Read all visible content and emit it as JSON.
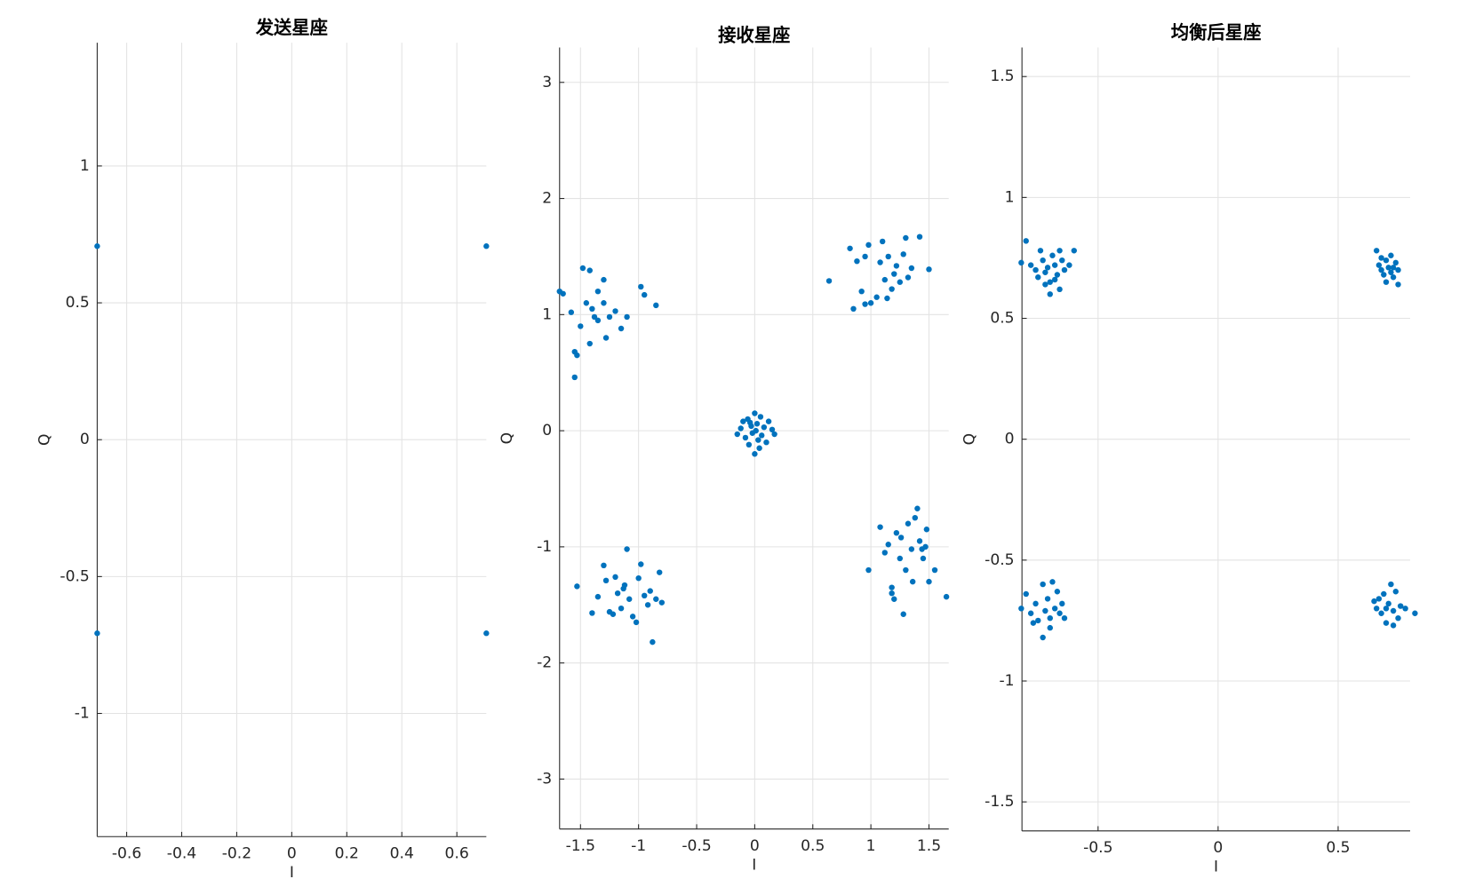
{
  "chart_data": [
    {
      "type": "scatter",
      "title": "发送星座",
      "xlabel": "I",
      "ylabel": "Q",
      "color": "#0072BD",
      "grid": true,
      "xlim": [
        -0.7071,
        0.7071
      ],
      "ylim": [
        -1.45,
        1.45
      ],
      "xticks": [
        -0.6,
        -0.4,
        -0.2,
        0,
        0.2,
        0.4,
        0.6
      ],
      "yticks": [
        -1,
        -0.5,
        0,
        0.5,
        1
      ],
      "x": [
        -0.7071,
        0.7071,
        -0.7071,
        0.7071
      ],
      "y": [
        0.7071,
        0.7071,
        -0.7071,
        -0.7071
      ]
    },
    {
      "type": "scatter",
      "title": "接收星座",
      "xlabel": "I",
      "ylabel": "Q",
      "color": "#0072BD",
      "grid": true,
      "xlim": [
        -1.68,
        1.67
      ],
      "ylim": [
        -3.43,
        3.3
      ],
      "xticks": [
        -1.5,
        -1,
        -0.5,
        0,
        0.5,
        1,
        1.5
      ],
      "yticks": [
        -3,
        -2,
        -1,
        0,
        1,
        2,
        3
      ],
      "x": [
        -1.68,
        -1.65,
        -1.55,
        -1.53,
        -1.55,
        -1.48,
        -1.42,
        -1.45,
        -1.4,
        -1.35,
        -1.3,
        -1.28,
        -1.25,
        -1.2,
        -1.15,
        -1.1,
        -0.98,
        -0.95,
        -0.85,
        -1.5,
        -1.42,
        -1.35,
        -1.3,
        -1.58,
        -1.38,
        0.64,
        0.82,
        0.88,
        0.92,
        0.95,
        0.98,
        1.0,
        1.05,
        1.1,
        1.12,
        1.15,
        1.2,
        1.22,
        1.25,
        1.3,
        1.35,
        1.42,
        1.5,
        0.85,
        1.18,
        1.28,
        1.08,
        0.95,
        1.32,
        1.14,
        -1.53,
        -1.4,
        -1.35,
        -1.3,
        -1.28,
        -1.25,
        -1.2,
        -1.18,
        -1.15,
        -1.12,
        -1.1,
        -1.08,
        -1.05,
        -1.0,
        -0.98,
        -0.95,
        -0.92,
        -0.88,
        -0.85,
        -0.82,
        -0.8,
        -1.22,
        -1.02,
        -1.13,
        -0.9,
        0.98,
        1.08,
        1.12,
        1.15,
        1.18,
        1.2,
        1.22,
        1.25,
        1.28,
        1.3,
        1.32,
        1.35,
        1.38,
        1.4,
        1.42,
        1.45,
        1.48,
        1.5,
        1.55,
        1.65,
        1.18,
        1.44,
        1.26,
        1.36,
        1.47,
        -0.15,
        -0.12,
        -0.1,
        -0.08,
        -0.06,
        -0.05,
        -0.03,
        -0.02,
        0.0,
        0.0,
        0.01,
        0.02,
        0.03,
        0.05,
        0.06,
        0.08,
        0.1,
        0.12,
        0.15,
        0.17,
        0.04,
        -0.04
      ],
      "y": [
        1.2,
        1.18,
        0.68,
        0.65,
        0.46,
        1.4,
        1.38,
        1.1,
        1.05,
        1.2,
        1.1,
        0.8,
        0.98,
        1.03,
        0.88,
        0.98,
        1.24,
        1.17,
        1.08,
        0.9,
        0.75,
        0.95,
        1.3,
        1.02,
        0.98,
        1.29,
        1.57,
        1.46,
        1.2,
        1.5,
        1.6,
        1.1,
        1.15,
        1.63,
        1.3,
        1.5,
        1.35,
        1.42,
        1.28,
        1.66,
        1.4,
        1.67,
        1.39,
        1.05,
        1.22,
        1.52,
        1.45,
        1.09,
        1.32,
        1.14,
        -1.34,
        -1.57,
        -1.43,
        -1.16,
        -1.29,
        -1.56,
        -1.26,
        -1.4,
        -1.53,
        -1.33,
        -1.02,
        -1.45,
        -1.6,
        -1.27,
        -1.15,
        -1.42,
        -1.5,
        -1.82,
        -1.45,
        -1.22,
        -1.48,
        -1.58,
        -1.65,
        -1.36,
        -1.38,
        -1.2,
        -0.83,
        -1.05,
        -0.98,
        -1.35,
        -1.45,
        -0.88,
        -1.1,
        -1.58,
        -1.2,
        -0.8,
        -1.02,
        -0.75,
        -0.67,
        -0.95,
        -1.1,
        -0.85,
        -1.3,
        -1.2,
        -1.43,
        -1.4,
        -1.02,
        -0.92,
        -1.3,
        -1.0,
        -0.03,
        0.02,
        0.08,
        -0.06,
        0.1,
        -0.12,
        0.04,
        -0.02,
        0.15,
        -0.2,
        0.0,
        0.06,
        -0.08,
        0.12,
        -0.04,
        0.03,
        -0.1,
        0.08,
        0.01,
        -0.03,
        -0.15,
        0.07
      ]
    },
    {
      "type": "scatter",
      "title": "均衡后星座",
      "xlabel": "I",
      "ylabel": "Q",
      "color": "#0072BD",
      "grid": true,
      "xlim": [
        -0.817,
        0.8
      ],
      "ylim": [
        -1.62,
        1.62
      ],
      "xticks": [
        -0.5,
        0,
        0.5
      ],
      "yticks": [
        -1.5,
        -1,
        -0.5,
        0,
        0.5,
        1,
        1.5
      ],
      "x": [
        -0.82,
        -0.8,
        -0.78,
        -0.76,
        -0.75,
        -0.73,
        -0.72,
        -0.71,
        -0.7,
        -0.69,
        -0.68,
        -0.67,
        -0.66,
        -0.65,
        -0.64,
        -0.62,
        -0.6,
        -0.74,
        -0.7,
        -0.68,
        -0.72,
        -0.66,
        0.66,
        0.67,
        0.68,
        0.69,
        0.7,
        0.7,
        0.71,
        0.72,
        0.72,
        0.73,
        0.74,
        0.75,
        0.75,
        0.68,
        0.73,
        -0.82,
        -0.8,
        -0.78,
        -0.76,
        -0.75,
        -0.73,
        -0.72,
        -0.71,
        -0.7,
        -0.69,
        -0.68,
        -0.67,
        -0.66,
        -0.65,
        -0.64,
        -0.73,
        -0.7,
        -0.77,
        0.65,
        0.66,
        0.68,
        0.69,
        0.7,
        0.71,
        0.72,
        0.73,
        0.74,
        0.75,
        0.76,
        0.78,
        0.82,
        0.7,
        0.73,
        0.67
      ],
      "y": [
        0.73,
        0.82,
        0.72,
        0.7,
        0.67,
        0.74,
        0.69,
        0.71,
        0.65,
        0.76,
        0.72,
        0.68,
        0.62,
        0.74,
        0.7,
        0.72,
        0.78,
        0.78,
        0.6,
        0.66,
        0.64,
        0.78,
        0.78,
        0.72,
        0.7,
        0.68,
        0.74,
        0.65,
        0.71,
        0.69,
        0.76,
        0.67,
        0.73,
        0.7,
        0.64,
        0.75,
        0.71,
        -0.7,
        -0.64,
        -0.72,
        -0.68,
        -0.75,
        -0.82,
        -0.71,
        -0.66,
        -0.74,
        -0.59,
        -0.7,
        -0.63,
        -0.72,
        -0.68,
        -0.74,
        -0.6,
        -0.78,
        -0.76,
        -0.67,
        -0.7,
        -0.72,
        -0.64,
        -0.76,
        -0.68,
        -0.6,
        -0.71,
        -0.63,
        -0.74,
        -0.69,
        -0.7,
        -0.72,
        -0.7,
        -0.77,
        -0.66
      ]
    }
  ]
}
